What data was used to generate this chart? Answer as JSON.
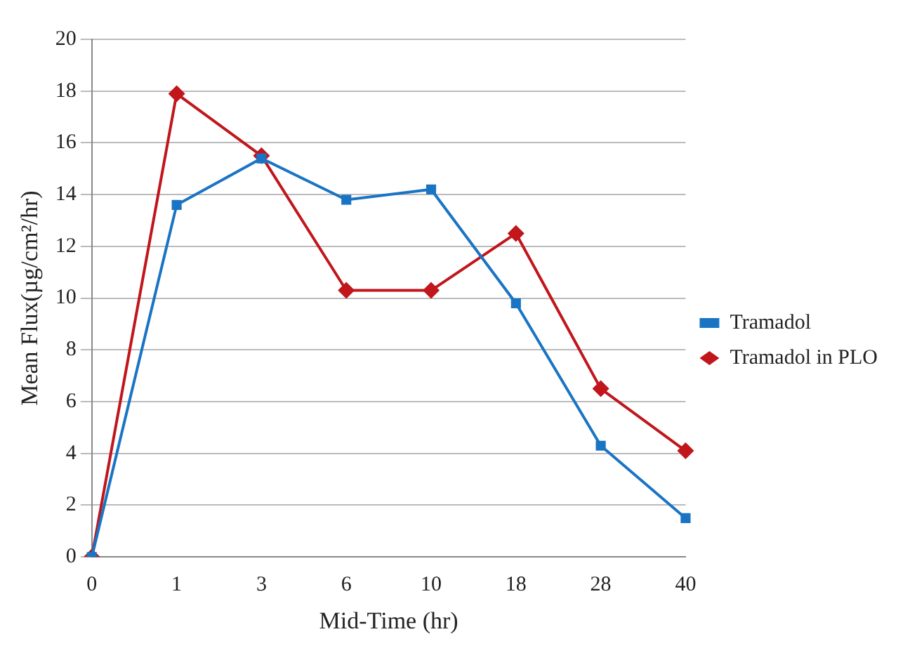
{
  "chart_data": {
    "type": "line",
    "xlabel": "Mid-Time (hr)",
    "ylabel": "Mean Flux(µg/cm²/hr)",
    "categories": [
      "0",
      "1",
      "3",
      "6",
      "10",
      "18",
      "28",
      "40"
    ],
    "series": [
      {
        "name": "Tramadol in PLO",
        "color": "#c0161c",
        "marker": "diamond",
        "values": [
          0,
          17.9,
          15.5,
          10.3,
          10.3,
          12.5,
          6.5,
          4.1
        ]
      },
      {
        "name": "Tramadol",
        "color": "#1a74c4",
        "marker": "square",
        "values": [
          0,
          13.6,
          15.4,
          13.8,
          14.2,
          9.8,
          4.3,
          1.5
        ]
      }
    ],
    "ylim": [
      0,
      20
    ],
    "yticks": [
      0,
      2,
      4,
      6,
      8,
      10,
      12,
      14,
      16,
      18,
      20
    ],
    "grid": "y",
    "legend": "right",
    "line_style": "solid"
  }
}
